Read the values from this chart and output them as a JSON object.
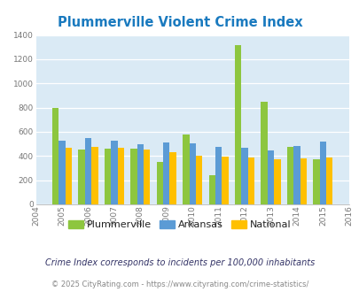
{
  "title": "Plummerville Violent Crime Index",
  "years": [
    2004,
    2005,
    2006,
    2007,
    2008,
    2009,
    2010,
    2011,
    2012,
    2013,
    2014,
    2015,
    2016
  ],
  "plummerville": [
    null,
    800,
    450,
    460,
    460,
    350,
    575,
    240,
    1320,
    850,
    475,
    370,
    null
  ],
  "arkansas": [
    null,
    530,
    550,
    530,
    500,
    510,
    505,
    475,
    465,
    445,
    480,
    520,
    null
  ],
  "national": [
    null,
    470,
    475,
    465,
    450,
    435,
    405,
    395,
    390,
    375,
    380,
    390,
    null
  ],
  "plummerville_color": "#8dc63f",
  "arkansas_color": "#5b9bd5",
  "national_color": "#ffc000",
  "bg_color": "#daeaf5",
  "ylim": [
    0,
    1400
  ],
  "yticks": [
    0,
    200,
    400,
    600,
    800,
    1000,
    1200,
    1400
  ],
  "legend_labels": [
    "Plummerville",
    "Arkansas",
    "National"
  ],
  "footnote1": "Crime Index corresponds to incidents per 100,000 inhabitants",
  "footnote2": "© 2025 CityRating.com - https://www.cityrating.com/crime-statistics/"
}
